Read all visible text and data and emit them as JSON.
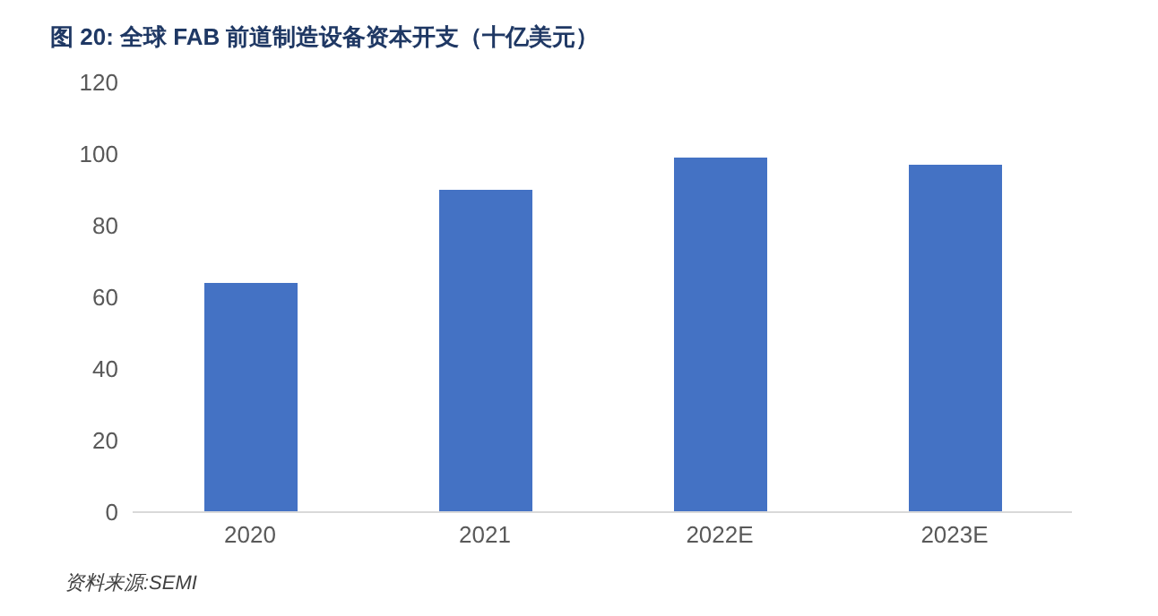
{
  "chart_data": {
    "type": "bar",
    "title": "图  20:  全球 FAB 前道制造设备资本开支（十亿美元）",
    "categories": [
      "2020",
      "2021",
      "2022E",
      "2023E"
    ],
    "values": [
      64,
      90,
      99,
      97
    ],
    "color": "#4472c4",
    "ylim": [
      0,
      120
    ],
    "yticks": [
      0,
      20,
      40,
      60,
      80,
      100,
      120
    ],
    "annotations": [
      "资料来源:SEMI"
    ]
  }
}
